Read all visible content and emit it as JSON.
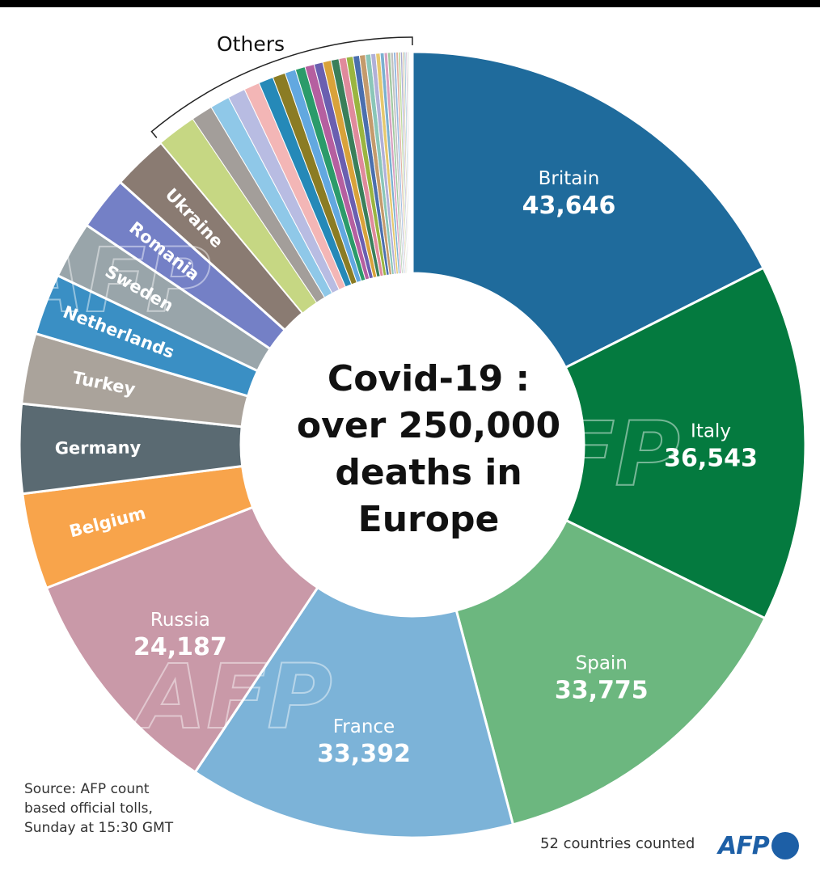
{
  "chart_data": {
    "type": "pie",
    "title": "Covid-19 : over 250,000 deaths in Europe",
    "total_countries": 52,
    "slices": [
      {
        "name": "Britain",
        "value": 43646,
        "value_label": "43,646",
        "color": "#1f6b9c"
      },
      {
        "name": "Italy",
        "value": 36543,
        "value_label": "36,543",
        "color": "#047a3f"
      },
      {
        "name": "Spain",
        "value": 33775,
        "value_label": "33,775",
        "color": "#6cb77f"
      },
      {
        "name": "France",
        "value": 33392,
        "value_label": "33,392",
        "color": "#7cb3d8"
      },
      {
        "name": "Russia",
        "value": 24187,
        "value_label": "24,187",
        "color": "#c999a8"
      },
      {
        "name": "Belgium",
        "value": 9800,
        "color": "#f8a44b"
      },
      {
        "name": "Germany",
        "value": 9100,
        "color": "#5a6a72"
      },
      {
        "name": "Turkey",
        "value": 7200,
        "color": "#aaa39b"
      },
      {
        "name": "Netherlands",
        "value": 6250,
        "color": "#3a8fc4"
      },
      {
        "name": "Sweden",
        "value": 5850,
        "color": "#99a5aa"
      },
      {
        "name": "Romania",
        "value": 5500,
        "color": "#7480c6"
      },
      {
        "name": "Ukraine",
        "value": 5700,
        "color": "#8a7b72"
      }
    ],
    "others": {
      "label": "Others",
      "values": [
        4000,
        2200,
        2000,
        1800,
        1600,
        1500,
        1300,
        1100,
        1000,
        950,
        900,
        850,
        800,
        750,
        700,
        650,
        600,
        550,
        500,
        450,
        400,
        350,
        300,
        280,
        260,
        240,
        220,
        200,
        180,
        160,
        140,
        120,
        100,
        80,
        60,
        50,
        40,
        30,
        25,
        20
      ],
      "colors": [
        "#c6d783",
        "#a39e9a",
        "#8fc8e8",
        "#b8bce2",
        "#f3b6b6",
        "#2589b8",
        "#8b7c24",
        "#62a8e0",
        "#2b9b6a",
        "#b55fa0",
        "#6a5fb0",
        "#d9a23a",
        "#3a7f5a",
        "#e08a9c",
        "#9ab540",
        "#4a6fae",
        "#c49a6c",
        "#8ac6b8",
        "#b0b0d8",
        "#e6c86e",
        "#7ab0d0",
        "#d8a0c0",
        "#a0c8a0",
        "#c0c0c0",
        "#98b8e0",
        "#e0b0a0",
        "#b8d898",
        "#a8a8d0",
        "#d0c0a0",
        "#90c0d0",
        "#c8a8c8",
        "#a8c8b8",
        "#d8d0b0",
        "#b0c8e0",
        "#e0c0c8",
        "#c0d8c8",
        "#d0d0e8",
        "#e8e0c8",
        "#c8e0e8",
        "#e0e0e0"
      ]
    }
  },
  "center_title_lines": [
    "Covid-19 :",
    "over 250,000",
    "deaths in",
    "Europe"
  ],
  "others_label": "Others",
  "source_lines": [
    "Source: AFP count",
    "based official tolls,",
    "Sunday at 15:30 GMT"
  ],
  "countries_counted": "52 countries counted",
  "watermark": "AFP",
  "logo": {
    "text": "AFP",
    "color": "#1d5fa6"
  }
}
